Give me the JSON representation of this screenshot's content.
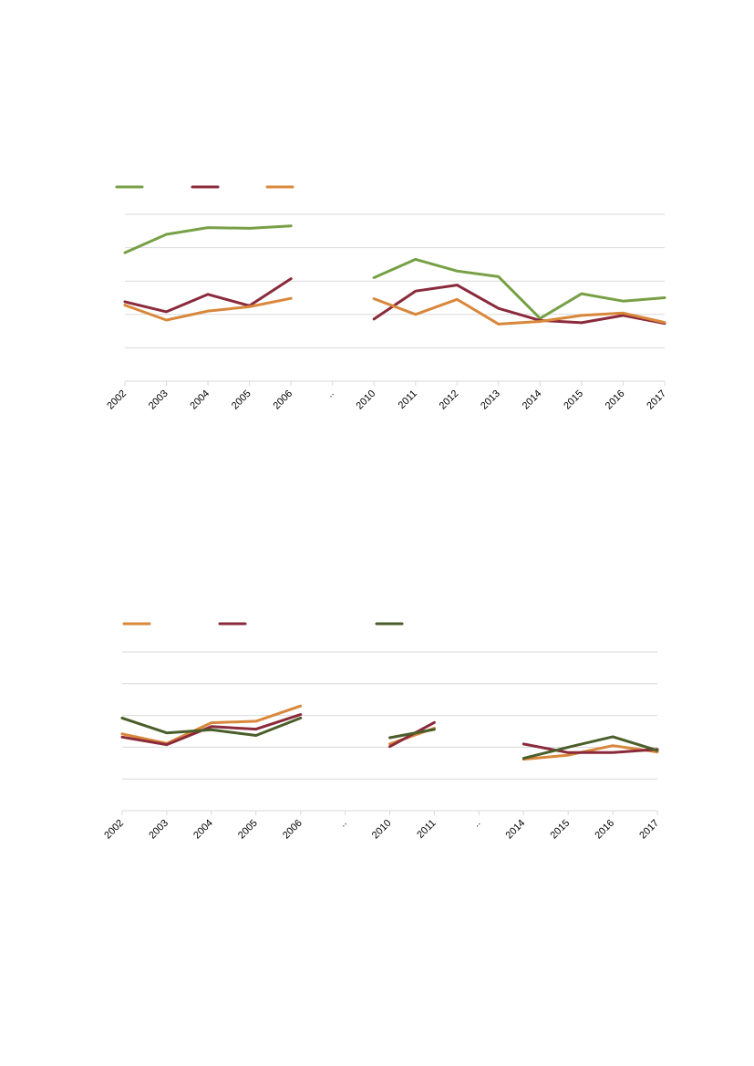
{
  "chart_data": [
    {
      "type": "line",
      "categories": [
        "2002",
        "2003",
        "2004",
        "2005",
        "2006",
        "..",
        "2010",
        "2011",
        "2012",
        "2013",
        "2014",
        "2015",
        "2016",
        "2017"
      ],
      "ylim": [
        0,
        5
      ],
      "grid": true,
      "legend": "top-left",
      "series": [
        {
          "color": "#77a046",
          "values": [
            3.85,
            4.4,
            4.6,
            4.58,
            4.65,
            null,
            3.1,
            3.65,
            3.3,
            3.13,
            1.88,
            2.62,
            2.4,
            2.5
          ]
        },
        {
          "color": "#8a2a3b",
          "values": [
            2.38,
            2.08,
            2.6,
            2.26,
            3.07,
            null,
            1.86,
            2.7,
            2.88,
            2.18,
            1.82,
            1.75,
            1.97,
            1.73
          ]
        },
        {
          "color": "#d9873b",
          "values": [
            2.28,
            1.83,
            2.1,
            2.23,
            2.48,
            null,
            2.47,
            2.0,
            2.45,
            1.71,
            1.79,
            1.97,
            2.04,
            1.76
          ]
        }
      ]
    },
    {
      "type": "line",
      "categories": [
        "2002",
        "2003",
        "2004",
        "2005",
        "2006",
        "..",
        "2010",
        "2011",
        "..",
        "2014",
        "2015",
        "2016",
        "2017"
      ],
      "ylim": [
        0,
        5
      ],
      "grid": true,
      "legend": "top-left",
      "series": [
        {
          "color": "#d9873b",
          "values": [
            2.42,
            2.12,
            2.77,
            2.82,
            3.3,
            null,
            2.1,
            2.6,
            null,
            1.62,
            1.75,
            2.05,
            1.85
          ]
        },
        {
          "color": "#8a2a3b",
          "values": [
            2.32,
            2.08,
            2.65,
            2.57,
            3.03,
            null,
            2.02,
            2.78,
            null,
            2.1,
            1.83,
            1.83,
            1.93
          ]
        },
        {
          "color": "#4a5e2a",
          "values": [
            2.92,
            2.45,
            2.55,
            2.37,
            2.92,
            null,
            2.3,
            2.56,
            null,
            1.65,
            2.0,
            2.33,
            1.9
          ]
        }
      ]
    }
  ]
}
